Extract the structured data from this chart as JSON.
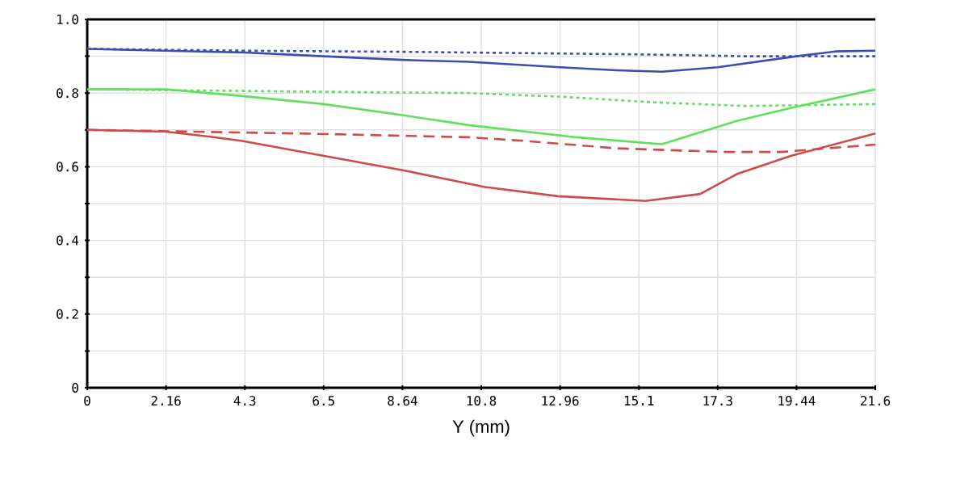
{
  "chart_data": {
    "type": "line",
    "xlabel": "Y (mm)",
    "xlim": [
      0,
      21.6
    ],
    "ylim": [
      0,
      1
    ],
    "xticks": [
      0,
      2.16,
      {
        "value": 4.32,
        "label": "4.3"
      },
      {
        "value": 6.48,
        "label": "6.5"
      },
      8.64,
      10.8,
      12.96,
      {
        "value": 15.12,
        "label": "15.1"
      },
      {
        "value": 17.28,
        "label": "17.3"
      },
      19.44,
      21.6
    ],
    "yticks": [
      0,
      {
        "value": 0.1,
        "label": null
      },
      0.2,
      {
        "value": 0.3,
        "label": null
      },
      0.4,
      {
        "value": 0.5,
        "label": null
      },
      0.6,
      {
        "value": 0.7,
        "label": null
      },
      0.8,
      {
        "value": 0.9,
        "label": null
      },
      {
        "value": 1,
        "label": "1.0"
      }
    ],
    "grid": true,
    "series": [
      {
        "color": "#3a4db0",
        "line_style": "solid",
        "x": [
          0,
          2.16,
          4.32,
          6.48,
          8.64,
          10.45,
          12.96,
          14.5,
          15.75,
          17.28,
          19.44,
          20.5,
          21.6
        ],
        "values": [
          0.92,
          0.915,
          0.91,
          0.9,
          0.89,
          0.885,
          0.87,
          0.862,
          0.858,
          0.87,
          0.9,
          0.913,
          0.915
        ]
      },
      {
        "color": "#3a4db0",
        "line_style": "dotted",
        "x": [
          0,
          4.32,
          8.64,
          10.5,
          15.12,
          18,
          21.6
        ],
        "values": [
          0.92,
          0.915,
          0.912,
          0.91,
          0.905,
          0.9,
          0.9
        ]
      },
      {
        "color": "#5ee05a",
        "line_style": "solid",
        "x": [
          0,
          2.16,
          4.25,
          6.48,
          8.64,
          10.45,
          13.4,
          15.75,
          17.8,
          19.3,
          21.6
        ],
        "values": [
          0.81,
          0.81,
          0.792,
          0.77,
          0.74,
          0.713,
          0.68,
          0.661,
          0.724,
          0.76,
          0.81
        ]
      },
      {
        "color": "#5ee05a",
        "line_style": "dotted",
        "x": [
          0,
          5,
          10.45,
          13,
          15.5,
          18,
          21.6
        ],
        "values": [
          0.81,
          0.805,
          0.8,
          0.79,
          0.775,
          0.765,
          0.77
        ]
      },
      {
        "color": "#d04a4a",
        "line_style": "solid",
        "x": [
          0,
          2.16,
          3.5,
          4.25,
          6.46,
          8.68,
          10.9,
          12.9,
          15.3,
          16.8,
          17.8,
          19.3,
          21.6
        ],
        "values": [
          0.7,
          0.695,
          0.68,
          0.67,
          0.63,
          0.59,
          0.545,
          0.52,
          0.507,
          0.526,
          0.58,
          0.63,
          0.69
        ]
      },
      {
        "color": "#d04a4a",
        "line_style": "dashed",
        "x": [
          0,
          6,
          10.45,
          12,
          14.5,
          17.5,
          19,
          21.6
        ],
        "values": [
          0.7,
          0.69,
          0.68,
          0.67,
          0.65,
          0.64,
          0.64,
          0.66
        ]
      }
    ]
  }
}
